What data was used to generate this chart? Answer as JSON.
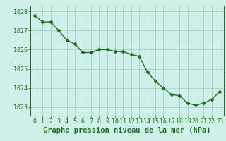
{
  "x": [
    0,
    1,
    2,
    3,
    4,
    5,
    6,
    7,
    8,
    9,
    10,
    11,
    12,
    13,
    14,
    15,
    16,
    17,
    18,
    19,
    20,
    21,
    22,
    23
  ],
  "y": [
    1027.8,
    1027.45,
    1027.45,
    1027.0,
    1026.5,
    1026.3,
    1025.85,
    1025.85,
    1026.0,
    1026.0,
    1025.9,
    1025.9,
    1025.75,
    1025.65,
    1024.85,
    1024.35,
    1024.0,
    1023.65,
    1023.6,
    1023.2,
    1023.1,
    1023.2,
    1023.4,
    1023.8
  ],
  "line_color": "#1e6e1e",
  "marker_color": "#1e6e1e",
  "bg_color": "#cef0e8",
  "grid_color": "#a0c8c0",
  "xlabel": "Graphe pression niveau de la mer (hPa)",
  "ylim_min": 1022.55,
  "ylim_max": 1028.3,
  "yticks": [
    1023,
    1024,
    1025,
    1026,
    1027,
    1028
  ],
  "xticks": [
    0,
    1,
    2,
    3,
    4,
    5,
    6,
    7,
    8,
    9,
    10,
    11,
    12,
    13,
    14,
    15,
    16,
    17,
    18,
    19,
    20,
    21,
    22,
    23
  ],
  "tick_fontsize": 6.0,
  "xlabel_fontsize": 7.5,
  "line_width": 1.0,
  "marker_size": 2.5
}
